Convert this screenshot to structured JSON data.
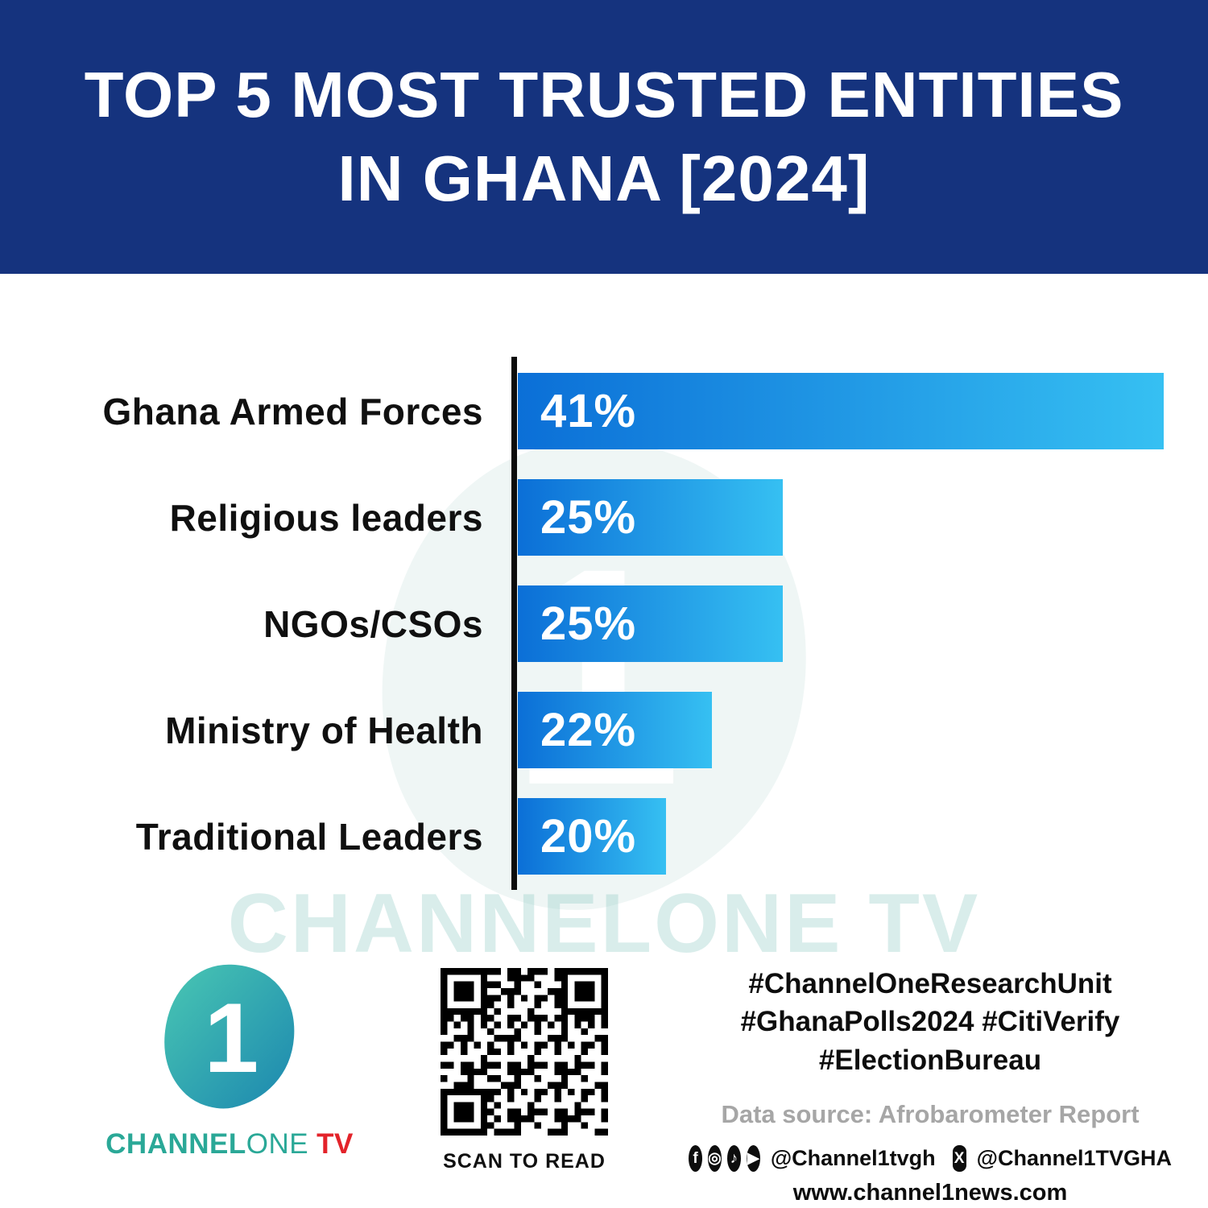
{
  "header": {
    "title_line1": "TOP 5 MOST TRUSTED ENTITIES",
    "title_line2": "IN GHANA [2024]"
  },
  "chart_data": {
    "type": "bar",
    "orientation": "horizontal",
    "title": "Top 5 Most Trusted Entities in Ghana [2024]",
    "categories": [
      "Ghana Armed Forces",
      "Religious leaders",
      "NGOs/CSOs",
      "Ministry of Health",
      "Traditional Leaders"
    ],
    "values": [
      41,
      25,
      25,
      22,
      20
    ],
    "value_labels": [
      "41%",
      "25%",
      "25%",
      "22%",
      "20%"
    ],
    "xlim": [
      0,
      41
    ],
    "grid": false,
    "legend": "none",
    "bar_color_gradient": [
      "#0B6FD7",
      "#36C0F2"
    ],
    "rendered_bar_fractions": [
      1.0,
      0.41,
      0.41,
      0.3,
      0.23
    ]
  },
  "watermark_text": "CHANNELONE TV",
  "footer": {
    "logo": {
      "number": "1",
      "part1": "CHANNEL",
      "part2": "ONE",
      "part3": "TV"
    },
    "qr_caption": "SCAN TO READ",
    "hashtags": [
      "#ChannelOneResearchUnit",
      "#GhanaPolls2024 #CitiVerify",
      "#ElectionBureau"
    ],
    "data_source": "Data source: Afrobarometer Report",
    "social": {
      "icons": [
        {
          "name": "facebook",
          "glyph": "f"
        },
        {
          "name": "instagram",
          "glyph": "◎"
        },
        {
          "name": "tiktok",
          "glyph": "♪"
        },
        {
          "name": "youtube",
          "glyph": "▶"
        }
      ],
      "handle_primary": "@Channel1tvgh",
      "x_glyph": "X",
      "handle_x": "@Channel1TVGHA"
    },
    "website": "www.channel1news.com"
  },
  "colors": {
    "header_bg": "#15337E",
    "bar_gradient_start": "#0B6FD7",
    "bar_gradient_end": "#36C0F2",
    "brand_teal": "#2AA897",
    "brand_red": "#E3232A",
    "text_black": "#101010",
    "muted_gray": "#A6A6A6",
    "watermark": "#80C4BC"
  }
}
